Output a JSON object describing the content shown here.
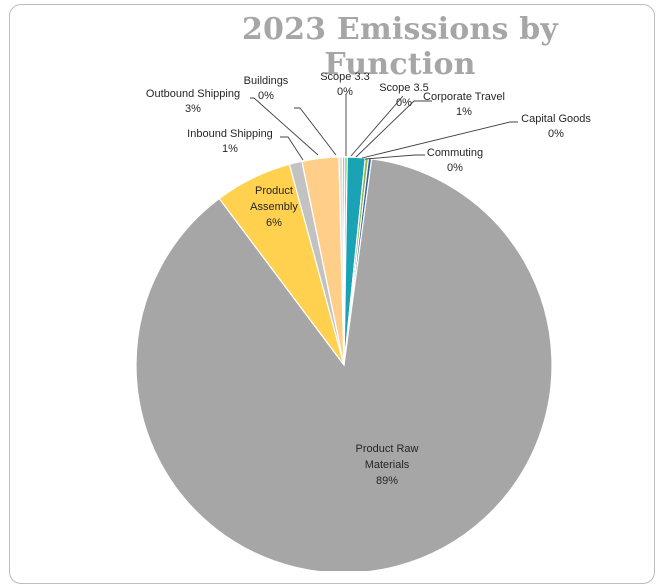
{
  "chart_data": {
    "type": "pie",
    "title": "2023 Emissions by Function",
    "slices": [
      {
        "name": "Scope 3.5",
        "label": "Scope 3.5",
        "pct_label": "0%",
        "value": 0.2,
        "color": "#70c050"
      },
      {
        "name": "Corporate Travel",
        "label": "Corporate Travel",
        "pct_label": "1%",
        "value": 1.4,
        "color": "#1aa3b4"
      },
      {
        "name": "Capital Goods",
        "label": "Capital Goods",
        "pct_label": "0%",
        "value": 0.25,
        "color": "#8fb442"
      },
      {
        "name": "Commuting",
        "label": "Commuting",
        "pct_label": "0%",
        "value": 0.25,
        "color": "#2e5fa7"
      },
      {
        "name": "Product Raw Materials",
        "label": "Product Raw Materials",
        "pct_label": "89%",
        "value": 89.0,
        "color": "#a6a6a6"
      },
      {
        "name": "Product Assembly",
        "label": "Product Assembly",
        "pct_label": "6%",
        "value": 6.1,
        "color": "#ffd14e"
      },
      {
        "name": "Inbound Shipping",
        "label": "Inbound Shipping",
        "pct_label": "1%",
        "value": 1.0,
        "color": "#c2c2c2"
      },
      {
        "name": "Outbound Shipping",
        "label": "Outbound Shipping",
        "pct_label": "3%",
        "value": 2.9,
        "color": "#ffcf8a"
      },
      {
        "name": "Buildings",
        "label": "Buildings",
        "pct_label": "0%",
        "value": 0.3,
        "color": "#e0e0e0"
      },
      {
        "name": "Scope 3.3",
        "label": "Scope 3.3",
        "pct_label": "0%",
        "value": 0.15,
        "color": "#5b8ed6"
      }
    ],
    "legend": "none"
  }
}
